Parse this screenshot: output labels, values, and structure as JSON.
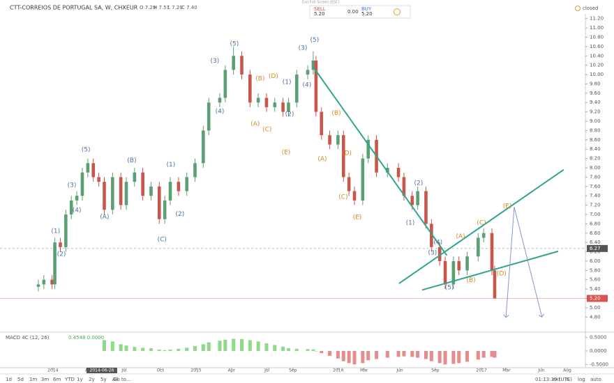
{
  "header": {
    "title": "CTT-CORREIOS DE PORTUGAL SA, W, CHXEUR",
    "ohlc": [
      "O 7.29",
      "H 7.57",
      "L 7.29",
      "C 7.40"
    ],
    "status": "closed"
  },
  "trade": {
    "exit_fullscreen": "Exit Full Screen (ESC)",
    "sell_label": "SELL",
    "sell_price": "5.20",
    "spread": "0.00",
    "buy_label": "BUY",
    "buy_price": "5.20"
  },
  "toolbar": {
    "ranges": [
      "1d",
      "5d",
      "1m",
      "3m",
      "6m",
      "YTD",
      "1y",
      "2y",
      "5y",
      "All"
    ],
    "goto": "Go to...",
    "time": "01:13:39 (UTC)",
    "options": [
      "ext",
      "%",
      "log",
      "auto"
    ]
  },
  "chart_data": {
    "type": "candlestick",
    "up_color": "#5b9f73",
    "down_color": "#c9564a",
    "x": [
      0,
      2,
      5,
      6,
      8,
      10,
      12,
      14,
      16,
      18,
      20,
      22,
      24,
      27,
      30,
      32,
      35,
      38,
      41,
      44,
      46,
      48,
      51,
      54,
      57,
      60,
      62,
      66,
      68,
      71,
      74,
      77,
      80,
      83,
      86,
      89,
      91,
      94,
      98,
      100,
      101,
      103,
      106,
      109,
      111,
      113,
      115,
      118,
      120,
      123,
      127,
      131,
      133,
      136,
      138,
      141,
      143,
      146,
      148,
      151,
      153,
      156,
      160,
      162,
      165,
      166
    ],
    "open": [
      5.45,
      5.5,
      5.6,
      5.5,
      6.4,
      6.3,
      7.0,
      7.3,
      7.4,
      7.9,
      8.1,
      7.8,
      7.7,
      7.1,
      7.8,
      7.2,
      7.7,
      7.9,
      7.4,
      7.6,
      6.9,
      7.3,
      7.7,
      7.5,
      7.8,
      8.1,
      8.8,
      9.4,
      9.5,
      10.1,
      10.4,
      10.0,
      9.4,
      9.5,
      9.3,
      9.4,
      9.2,
      9.4,
      10.0,
      10.1,
      10.3,
      9.2,
      8.7,
      8.5,
      8.7,
      7.8,
      7.5,
      7.3,
      8.2,
      8.6,
      7.9,
      8.0,
      7.8,
      7.4,
      7.2,
      7.5,
      6.8,
      6.3,
      6.0,
      5.5,
      6.0,
      5.8,
      6.1,
      6.5,
      6.6,
      5.8
    ],
    "high": [
      5.6,
      5.7,
      5.7,
      6.5,
      6.5,
      7.1,
      7.4,
      7.5,
      8.0,
      8.2,
      8.2,
      7.9,
      7.8,
      7.9,
      7.9,
      7.8,
      8.0,
      8.0,
      7.7,
      7.7,
      7.4,
      7.8,
      7.8,
      7.9,
      8.2,
      8.9,
      9.5,
      9.6,
      10.2,
      10.6,
      10.5,
      10.1,
      9.6,
      9.6,
      9.5,
      9.5,
      9.5,
      10.1,
      10.2,
      10.5,
      10.4,
      9.3,
      8.8,
      8.8,
      8.8,
      7.9,
      7.6,
      8.3,
      8.7,
      8.7,
      8.1,
      8.1,
      7.9,
      7.5,
      7.6,
      7.6,
      6.9,
      6.4,
      6.1,
      6.1,
      6.1,
      6.2,
      6.6,
      6.7,
      6.7,
      5.9
    ],
    "low": [
      5.35,
      5.4,
      5.4,
      5.4,
      6.2,
      6.2,
      6.9,
      7.2,
      7.3,
      7.8,
      7.7,
      7.6,
      7.0,
      7.0,
      7.1,
      7.1,
      7.6,
      7.3,
      7.3,
      6.8,
      6.8,
      7.2,
      7.4,
      7.4,
      7.7,
      8.0,
      8.7,
      9.3,
      9.4,
      10.0,
      9.9,
      9.3,
      9.3,
      9.2,
      9.2,
      9.1,
      9.1,
      9.3,
      9.9,
      10.0,
      9.1,
      8.6,
      8.4,
      8.4,
      7.7,
      7.4,
      7.2,
      7.2,
      8.1,
      7.8,
      7.8,
      7.7,
      7.3,
      7.1,
      7.1,
      6.7,
      6.2,
      5.9,
      5.4,
      5.4,
      5.7,
      5.7,
      6.0,
      6.4,
      5.7,
      5.2
    ],
    "close": [
      5.5,
      5.6,
      5.5,
      6.4,
      6.3,
      7.0,
      7.3,
      7.4,
      7.9,
      8.1,
      7.8,
      7.7,
      7.1,
      7.8,
      7.2,
      7.7,
      7.9,
      7.4,
      7.6,
      6.9,
      7.3,
      7.7,
      7.5,
      7.8,
      8.1,
      8.8,
      9.4,
      9.5,
      10.1,
      10.4,
      10.0,
      9.4,
      9.5,
      9.3,
      9.4,
      9.2,
      9.4,
      10.0,
      10.1,
      10.3,
      9.2,
      8.7,
      8.5,
      8.7,
      7.8,
      7.5,
      7.3,
      8.2,
      8.6,
      7.9,
      8.0,
      7.8,
      7.4,
      7.2,
      7.5,
      6.8,
      6.3,
      6.0,
      5.5,
      6.0,
      5.8,
      6.1,
      6.5,
      6.6,
      5.8,
      5.2
    ],
    "xlim": [
      -1,
      199
    ],
    "xticks": [
      {
        "value": 5.3,
        "label": "2014"
      },
      {
        "value": 18.3,
        "label": "Apr"
      },
      {
        "value": 31.2,
        "label": "Jul"
      },
      {
        "value": 44.4,
        "label": "Oct"
      },
      {
        "value": 57.4,
        "label": "2015"
      },
      {
        "value": 70.3,
        "label": "Apr"
      },
      {
        "value": 83.2,
        "label": "Jul"
      },
      {
        "value": 92.6,
        "label": "Sep"
      },
      {
        "value": 109.1,
        "label": "2016"
      },
      {
        "value": 118.5,
        "label": "Mar"
      },
      {
        "value": 131.5,
        "label": "Jun"
      },
      {
        "value": 144.4,
        "label": "Sep"
      },
      {
        "value": 161.2,
        "label": "2017"
      },
      {
        "value": 170.3,
        "label": "Mar"
      },
      {
        "value": 183,
        "label": "Jun"
      },
      {
        "value": 192.4,
        "label": "Aug"
      }
    ],
    "x_cursor": {
      "value": 23.1,
      "label": "2014-06-26"
    },
    "ylim": [
      4.7,
      11.3
    ],
    "yticks": [
      {
        "value": 4.8,
        "label": "4.80"
      },
      {
        "value": 5.0,
        "label": "5.00"
      },
      {
        "value": 5.2,
        "label": "5.20"
      },
      {
        "value": 5.4,
        "label": "5.40"
      },
      {
        "value": 5.6,
        "label": "5.60"
      },
      {
        "value": 5.8,
        "label": "5.80"
      },
      {
        "value": 6.0,
        "label": "6.00"
      },
      {
        "value": 6.2,
        "label": "6.20"
      },
      {
        "value": 6.4,
        "label": "6.40"
      },
      {
        "value": 6.6,
        "label": "6.60"
      },
      {
        "value": 6.8,
        "label": "6.80"
      },
      {
        "value": 7.0,
        "label": "7.00"
      },
      {
        "value": 7.2,
        "label": "7.20"
      },
      {
        "value": 7.4,
        "label": "7.40"
      },
      {
        "value": 7.6,
        "label": "7.60"
      },
      {
        "value": 7.8,
        "label": "7.80"
      },
      {
        "value": 8.0,
        "label": "8.00"
      },
      {
        "value": 8.2,
        "label": "8.20"
      },
      {
        "value": 8.4,
        "label": "8.40"
      },
      {
        "value": 8.6,
        "label": "8.60"
      },
      {
        "value": 8.8,
        "label": "8.80"
      },
      {
        "value": 9.0,
        "label": "9.00"
      },
      {
        "value": 9.2,
        "label": "9.20"
      },
      {
        "value": 9.4,
        "label": "9.40"
      },
      {
        "value": 9.6,
        "label": "9.60"
      },
      {
        "value": 9.8,
        "label": "9.80"
      },
      {
        "value": 10.0,
        "label": "10.00"
      },
      {
        "value": 10.2,
        "label": "10.20"
      },
      {
        "value": 10.4,
        "label": "10.40"
      },
      {
        "value": 10.6,
        "label": "10.60"
      },
      {
        "value": 10.8,
        "label": "10.80"
      },
      {
        "value": 11.0,
        "label": "11.00"
      },
      {
        "value": 11.2,
        "label": "11.20"
      }
    ],
    "last_price": {
      "value": 5.2,
      "label": "5.20",
      "color": "#d9534f"
    },
    "cursor_price": {
      "value": 6.27,
      "label": "6.27",
      "color": "#555555"
    },
    "annotations": [
      {
        "text": "(1)",
        "x": 6.3,
        "y": 6.64,
        "color": "#4a6fa5"
      },
      {
        "text": "(2)",
        "x": 8.4,
        "y": 6.15,
        "color": "#4a6fa5"
      },
      {
        "text": "(3)",
        "x": 12.2,
        "y": 7.63,
        "color": "#4a6fa5"
      },
      {
        "text": "(4)",
        "x": 14,
        "y": 7.09,
        "color": "#4a6fa5"
      },
      {
        "text": "(5)",
        "x": 17.3,
        "y": 8.39,
        "color": "#4a6fa5"
      },
      {
        "text": "(A)",
        "x": 24.1,
        "y": 6.95,
        "color": "#4a6fa5"
      },
      {
        "text": "(B)",
        "x": 34,
        "y": 8.16,
        "color": "#4a6fa5"
      },
      {
        "text": "(C)",
        "x": 45,
        "y": 6.46,
        "color": "#4a6fa5"
      },
      {
        "text": "(1)",
        "x": 48.2,
        "y": 8.07,
        "color": "#4a6fa5"
      },
      {
        "text": "(2)",
        "x": 51.5,
        "y": 7.01,
        "color": "#4a6fa5"
      },
      {
        "text": "(3)",
        "x": 64.2,
        "y": 10.29,
        "color": "#4a6fa5"
      },
      {
        "text": "(4)",
        "x": 66,
        "y": 9.21,
        "color": "#4a6fa5"
      },
      {
        "text": "(5)",
        "x": 71.3,
        "y": 10.66,
        "color": "#4a6fa5"
      },
      {
        "text": "(1)",
        "x": 90.4,
        "y": 9.84,
        "color": "#4a6fa5"
      },
      {
        "text": "(2)",
        "x": 91.4,
        "y": 9.15,
        "color": "#4a6fa5"
      },
      {
        "text": "(3)",
        "x": 96.2,
        "y": 10.57,
        "color": "#4a6fa5"
      },
      {
        "text": "(4)",
        "x": 97.7,
        "y": 9.78,
        "color": "#4a6fa5"
      },
      {
        "text": "(5)",
        "x": 100.5,
        "y": 10.74,
        "color": "#4a6fa5"
      },
      {
        "text": "(1)",
        "x": 135.3,
        "y": 6.82,
        "color": "#4a6fa5"
      },
      {
        "text": "(2)",
        "x": 138.3,
        "y": 7.67,
        "color": "#4a6fa5"
      },
      {
        "text": "(3)",
        "x": 143.4,
        "y": 6.18,
        "color": "#4a6fa5"
      },
      {
        "text": "(4)",
        "x": 145.4,
        "y": 6.4,
        "color": "#4a6fa5"
      },
      {
        "text": "(5)",
        "x": 149.5,
        "y": 5.43,
        "color": "#4a6fa5"
      },
      {
        "text": "(A)",
        "x": 78.9,
        "y": 8.94,
        "color": "#d4892a"
      },
      {
        "text": "(B)",
        "x": 80.7,
        "y": 9.91,
        "color": "#d4892a"
      },
      {
        "text": "(C)",
        "x": 83.2,
        "y": 8.82,
        "color": "#d4892a"
      },
      {
        "text": "(D)",
        "x": 85.5,
        "y": 9.96,
        "color": "#d4892a"
      },
      {
        "text": "(E)",
        "x": 90.1,
        "y": 8.33,
        "color": "#d4892a"
      },
      {
        "text": "(A)",
        "x": 103.3,
        "y": 8.19,
        "color": "#d4892a"
      },
      {
        "text": "(B)",
        "x": 108.4,
        "y": 9.17,
        "color": "#d4892a"
      },
      {
        "text": "(C)",
        "x": 110.9,
        "y": 7.37,
        "color": "#d4892a"
      },
      {
        "text": "(D)",
        "x": 112.2,
        "y": 8.31,
        "color": "#d4892a"
      },
      {
        "text": "(E)",
        "x": 116,
        "y": 6.94,
        "color": "#d4892a"
      },
      {
        "text": "(A)",
        "x": 153.6,
        "y": 6.53,
        "color": "#d4892a"
      },
      {
        "text": "(B)",
        "x": 157.4,
        "y": 5.59,
        "color": "#d4892a"
      },
      {
        "text": "(C)",
        "x": 161.2,
        "y": 6.82,
        "color": "#d4892a"
      },
      {
        "text": "(D)",
        "x": 168.5,
        "y": 5.73,
        "color": "#d4892a"
      },
      {
        "text": "(E)",
        "x": 170.6,
        "y": 7.18,
        "color": "#d4892a"
      }
    ],
    "lines": [
      {
        "x": [
          99.8,
          148.6
        ],
        "y": [
          10.18,
          6.12
        ],
        "color": "#2fa58e",
        "arrow": false
      },
      {
        "x": [
          131.2,
          191.1
        ],
        "y": [
          5.52,
          7.96
        ],
        "color": "#2fa58e",
        "arrow": false
      },
      {
        "x": [
          139.6,
          189.1
        ],
        "y": [
          5.38,
          6.21
        ],
        "color": "#2fa58e",
        "arrow": false
      },
      {
        "x": [
          173.1,
          170.1
        ],
        "y": [
          7.16,
          4.79
        ],
        "color": "#7f99cc",
        "arrow": true
      },
      {
        "x": [
          173.1,
          183.2
        ],
        "y": [
          7.16,
          4.8
        ],
        "color": "#7f99cc",
        "arrow": true
      }
    ],
    "macd": {
      "title": "MACD 4C (12, 26)",
      "readout": "0.4548 0.0000",
      "positive_color": "#8fd98a",
      "negative_color": "#e58c8c",
      "ylim": [
        -0.62,
        0.67
      ],
      "yticks": [
        {
          "value": -0.5,
          "label": "-0.5000"
        },
        {
          "value": 0,
          "label": "0.0000"
        },
        {
          "value": 0.5,
          "label": "0.5000"
        }
      ],
      "values": [
        null,
        null,
        null,
        null,
        null,
        null,
        null,
        null,
        null,
        null,
        null,
        null,
        0.4,
        0.35,
        0.25,
        0.2,
        0.15,
        0.12,
        0.1,
        0.05,
        0.03,
        0.05,
        0.08,
        0.12,
        0.18,
        0.25,
        0.32,
        0.38,
        0.42,
        0.45,
        0.44,
        0.4,
        0.35,
        0.28,
        0.22,
        0.16,
        0.1,
        0.08,
        0.07,
        0.06,
        0.0,
        -0.08,
        -0.18,
        -0.28,
        -0.38,
        -0.45,
        -0.5,
        -0.45,
        -0.35,
        -0.3,
        -0.25,
        -0.22,
        -0.2,
        -0.22,
        -0.25,
        -0.3,
        -0.38,
        -0.45,
        -0.5,
        -0.48,
        -0.45,
        -0.4,
        -0.32,
        -0.25,
        -0.22,
        -0.25
      ]
    }
  }
}
